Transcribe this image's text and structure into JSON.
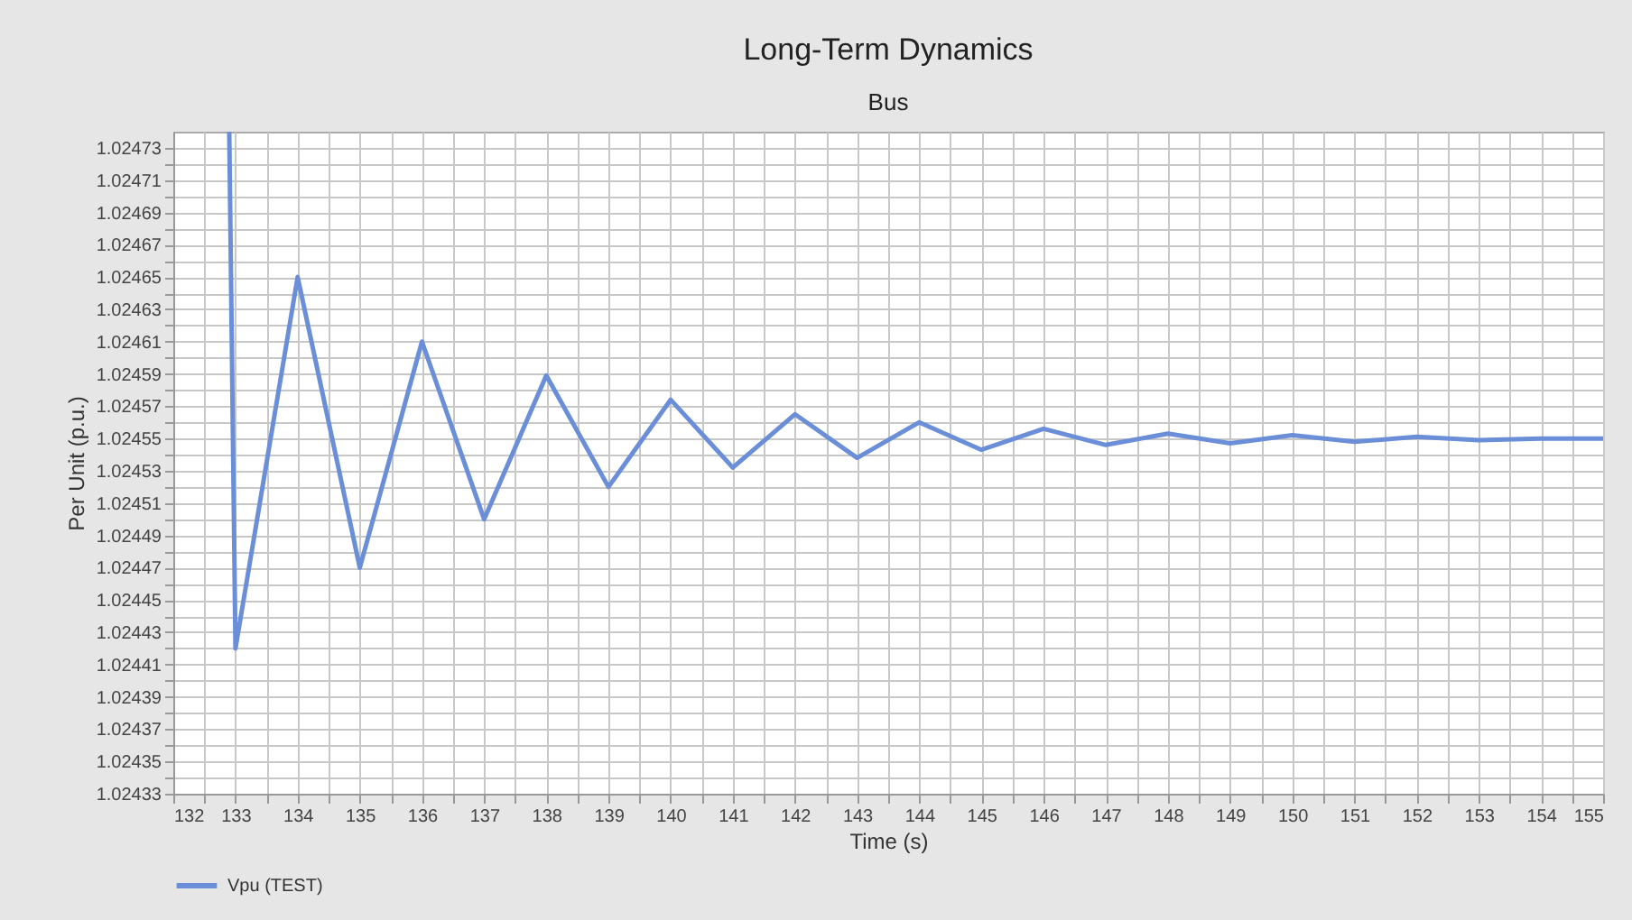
{
  "chart_data": {
    "type": "line",
    "title": "Long-Term Dynamics",
    "subtitle": "Bus",
    "xlabel": "Time (s)",
    "ylabel": "Per Unit (p.u.)",
    "xlim": [
      132,
      155
    ],
    "xticks": [
      132,
      {
        "value": 132.5,
        "label": null
      },
      133,
      {
        "value": 133.5,
        "label": null
      },
      134,
      {
        "value": 134.5,
        "label": null
      },
      135,
      {
        "value": 135.5,
        "label": null
      },
      136,
      {
        "value": 136.5,
        "label": null
      },
      137,
      {
        "value": 137.5,
        "label": null
      },
      138,
      {
        "value": 138.5,
        "label": null
      },
      139,
      {
        "value": 139.5,
        "label": null
      },
      140,
      {
        "value": 140.5,
        "label": null
      },
      141,
      {
        "value": 141.5,
        "label": null
      },
      142,
      {
        "value": 142.5,
        "label": null
      },
      143,
      {
        "value": 143.5,
        "label": null
      },
      144,
      {
        "value": 144.5,
        "label": null
      },
      145,
      {
        "value": 145.5,
        "label": null
      },
      146,
      {
        "value": 146.5,
        "label": null
      },
      147,
      {
        "value": 147.5,
        "label": null
      },
      148,
      {
        "value": 148.5,
        "label": null
      },
      149,
      {
        "value": 149.5,
        "label": null
      },
      150,
      {
        "value": 150.5,
        "label": null
      },
      151,
      {
        "value": 151.5,
        "label": null
      },
      152,
      {
        "value": 152.5,
        "label": null
      },
      153,
      {
        "value": 153.5,
        "label": null
      },
      154,
      {
        "value": 154.5,
        "label": null
      },
      155
    ],
    "ylim": [
      1.02433,
      1.02474
    ],
    "yticks": [
      1.02433,
      {
        "value": 1.02434,
        "label": null
      },
      1.02435,
      {
        "value": 1.02436,
        "label": null
      },
      1.02437,
      {
        "value": 1.02438,
        "label": null
      },
      1.02439,
      {
        "value": 1.0244,
        "label": null
      },
      1.02441,
      {
        "value": 1.02442,
        "label": null
      },
      1.02443,
      {
        "value": 1.02444,
        "label": null
      },
      1.02445,
      {
        "value": 1.02446,
        "label": null
      },
      1.02447,
      {
        "value": 1.02448,
        "label": null
      },
      1.02449,
      {
        "value": 1.0245,
        "label": null
      },
      1.02451,
      {
        "value": 1.02452,
        "label": null
      },
      1.02453,
      {
        "value": 1.02454,
        "label": null
      },
      1.02455,
      {
        "value": 1.02456,
        "label": null
      },
      1.02457,
      {
        "value": 1.02458,
        "label": null
      },
      1.02459,
      {
        "value": 1.0246,
        "label": null
      },
      1.02461,
      {
        "value": 1.02462,
        "label": null
      },
      1.02463,
      {
        "value": 1.02464,
        "label": null
      },
      1.02465,
      {
        "value": 1.02466,
        "label": null
      },
      1.02467,
      {
        "value": 1.02468,
        "label": null
      },
      1.02469,
      {
        "value": 1.0247,
        "label": null
      },
      1.02471,
      {
        "value": 1.02472,
        "label": null
      },
      1.02473
    ],
    "x": [
      132.9,
      133,
      134,
      135,
      136,
      137,
      138,
      139,
      140,
      141,
      142,
      143,
      144,
      145,
      146,
      147,
      148,
      149,
      150,
      151,
      152,
      153,
      154,
      155
    ],
    "series": [
      {
        "name": "Vpu (TEST)",
        "color": "#6a8fd8",
        "values": [
          1.02474,
          1.02442,
          1.02465,
          1.02447,
          1.02461,
          1.0245,
          1.024589,
          1.02452,
          1.024574,
          1.024532,
          1.024565,
          1.024538,
          1.02456,
          1.024543,
          1.024556,
          1.024546,
          1.024553,
          1.024547,
          1.024552,
          1.024548,
          1.024551,
          1.024549,
          1.02455,
          1.02455
        ]
      }
    ],
    "grid": true,
    "legend": "bottom",
    "marker": "none",
    "line_style": "solid"
  }
}
